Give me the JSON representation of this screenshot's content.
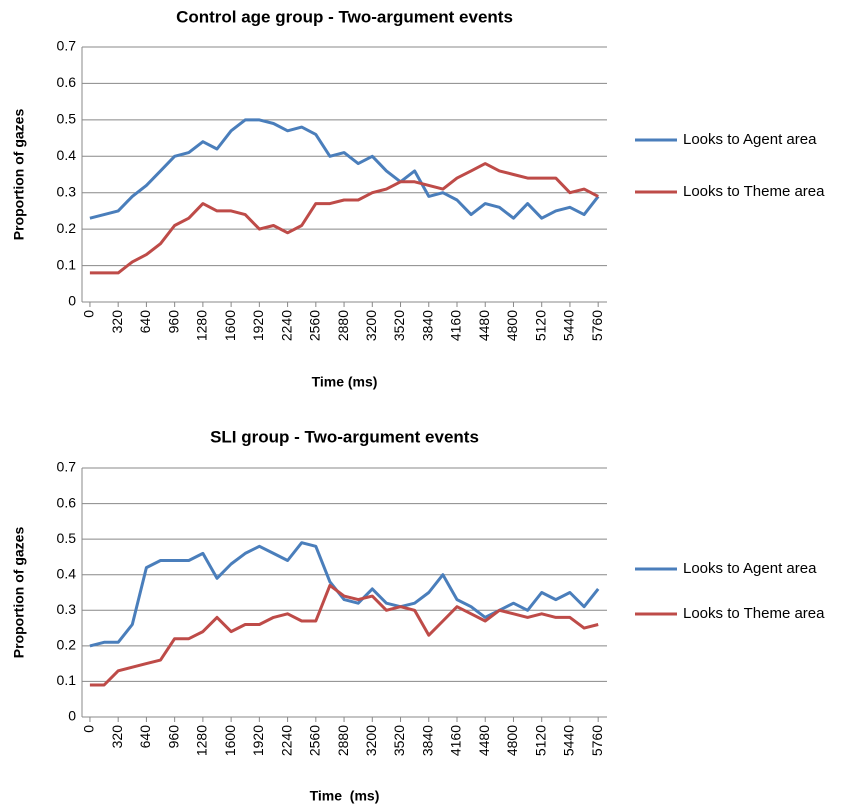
{
  "chart_data": [
    {
      "type": "line",
      "title": "Control age group - Two-argument events",
      "xlabel": "Time (ms)",
      "ylabel": "Proportion of gazes",
      "x": [
        0,
        160,
        320,
        480,
        640,
        800,
        960,
        1120,
        1280,
        1440,
        1600,
        1760,
        1920,
        2080,
        2240,
        2400,
        2560,
        2720,
        2880,
        3040,
        3200,
        3360,
        3520,
        3680,
        3840,
        4000,
        4160,
        4320,
        4480,
        4640,
        4800,
        4960,
        5120,
        5280,
        5440,
        5600,
        5760
      ],
      "xlim": [
        -90,
        5860
      ],
      "xticks": [
        0,
        320,
        640,
        960,
        1280,
        1600,
        1920,
        2240,
        2560,
        2880,
        3200,
        3520,
        3840,
        4160,
        4480,
        4800,
        5120,
        5440,
        5760
      ],
      "ylim": [
        0,
        0.7
      ],
      "yticks": [
        0,
        0.1,
        0.2,
        0.3,
        0.4,
        0.5,
        0.6,
        0.7
      ],
      "grid": true,
      "legend": "right",
      "series": [
        {
          "name": "Looks to Agent area",
          "color": "#4a7ebb",
          "values": [
            0.23,
            0.24,
            0.25,
            0.29,
            0.32,
            0.36,
            0.4,
            0.41,
            0.44,
            0.42,
            0.47,
            0.5,
            0.5,
            0.49,
            0.47,
            0.48,
            0.46,
            0.4,
            0.41,
            0.38,
            0.4,
            0.36,
            0.33,
            0.36,
            0.29,
            0.3,
            0.28,
            0.24,
            0.27,
            0.26,
            0.23,
            0.27,
            0.23,
            0.25,
            0.26,
            0.24,
            0.29
          ]
        },
        {
          "name": "Looks to Theme area",
          "color": "#be4b48",
          "values": [
            0.08,
            0.08,
            0.08,
            0.11,
            0.13,
            0.16,
            0.21,
            0.23,
            0.27,
            0.25,
            0.25,
            0.24,
            0.2,
            0.21,
            0.19,
            0.21,
            0.27,
            0.27,
            0.28,
            0.28,
            0.3,
            0.31,
            0.33,
            0.33,
            0.32,
            0.31,
            0.34,
            0.36,
            0.38,
            0.36,
            0.35,
            0.34,
            0.34,
            0.34,
            0.3,
            0.31,
            0.29
          ]
        }
      ]
    },
    {
      "type": "line",
      "title": "SLI group - Two-argument events",
      "xlabel": "Time  (ms)",
      "ylabel": "Proportion of gazes",
      "x": [
        0,
        160,
        320,
        480,
        640,
        800,
        960,
        1120,
        1280,
        1440,
        1600,
        1760,
        1920,
        2080,
        2240,
        2400,
        2560,
        2720,
        2880,
        3040,
        3200,
        3360,
        3520,
        3680,
        3840,
        4000,
        4160,
        4320,
        4480,
        4640,
        4800,
        4960,
        5120,
        5280,
        5440,
        5600,
        5760
      ],
      "xlim": [
        -90,
        5860
      ],
      "xticks": [
        0,
        320,
        640,
        960,
        1280,
        1600,
        1920,
        2240,
        2560,
        2880,
        3200,
        3520,
        3840,
        4160,
        4480,
        4800,
        5120,
        5440,
        5760
      ],
      "ylim": [
        0,
        0.7
      ],
      "yticks": [
        0,
        0.1,
        0.2,
        0.3,
        0.4,
        0.5,
        0.6,
        0.7
      ],
      "grid": true,
      "legend": "right",
      "series": [
        {
          "name": "Looks to Agent area",
          "color": "#4a7ebb",
          "values": [
            0.2,
            0.21,
            0.21,
            0.26,
            0.42,
            0.44,
            0.44,
            0.44,
            0.46,
            0.39,
            0.43,
            0.46,
            0.48,
            0.46,
            0.44,
            0.49,
            0.48,
            0.38,
            0.33,
            0.32,
            0.36,
            0.32,
            0.31,
            0.32,
            0.35,
            0.4,
            0.33,
            0.31,
            0.28,
            0.3,
            0.32,
            0.3,
            0.35,
            0.33,
            0.35,
            0.31,
            0.36
          ]
        },
        {
          "name": "Looks to Theme area",
          "color": "#be4b48",
          "values": [
            0.09,
            0.09,
            0.13,
            0.14,
            0.15,
            0.16,
            0.22,
            0.22,
            0.24,
            0.28,
            0.24,
            0.26,
            0.26,
            0.28,
            0.29,
            0.27,
            0.27,
            0.37,
            0.34,
            0.33,
            0.34,
            0.3,
            0.31,
            0.3,
            0.23,
            0.27,
            0.31,
            0.29,
            0.27,
            0.3,
            0.29,
            0.28,
            0.29,
            0.28,
            0.28,
            0.25,
            0.26
          ]
        }
      ]
    }
  ]
}
